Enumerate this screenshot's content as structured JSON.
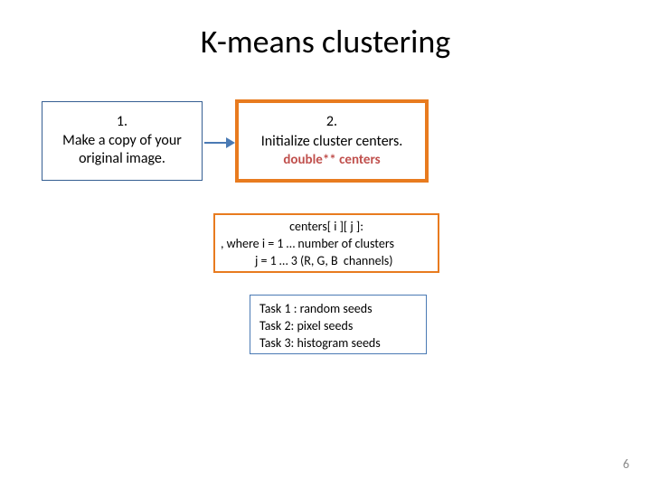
{
  "title": "K-means clustering",
  "box1": {
    "num": "1.",
    "l1": "Make a copy of your",
    "l2": "original image."
  },
  "box2": {
    "num": "2.",
    "l1": "Initialize cluster centers.",
    "code": "double** centers"
  },
  "infobox": {
    "l1": "centers[ i ][ j ]:",
    "l2": ", where i = 1 … number of clusters",
    "l3": "            j = 1 … 3 (R, G, B  channels)"
  },
  "taskbox": {
    "l1": "Task 1 : random seeds",
    "l2": "Task 2: pixel seeds",
    "l3": "Task 3: histogram seeds"
  },
  "pagenum": "6",
  "colors": {
    "blue_border": "#355e92",
    "arrow_blue": "#4a7ab4",
    "orange": "#e87b1f",
    "code_red": "#c0504d",
    "pagenum_gray": "#8b8b8b",
    "bg": "#ffffff"
  },
  "layout": {
    "slide_w": 720,
    "slide_h": 540,
    "title_fontsize": 36,
    "body_fontsize": 16,
    "small_fontsize": 14
  }
}
